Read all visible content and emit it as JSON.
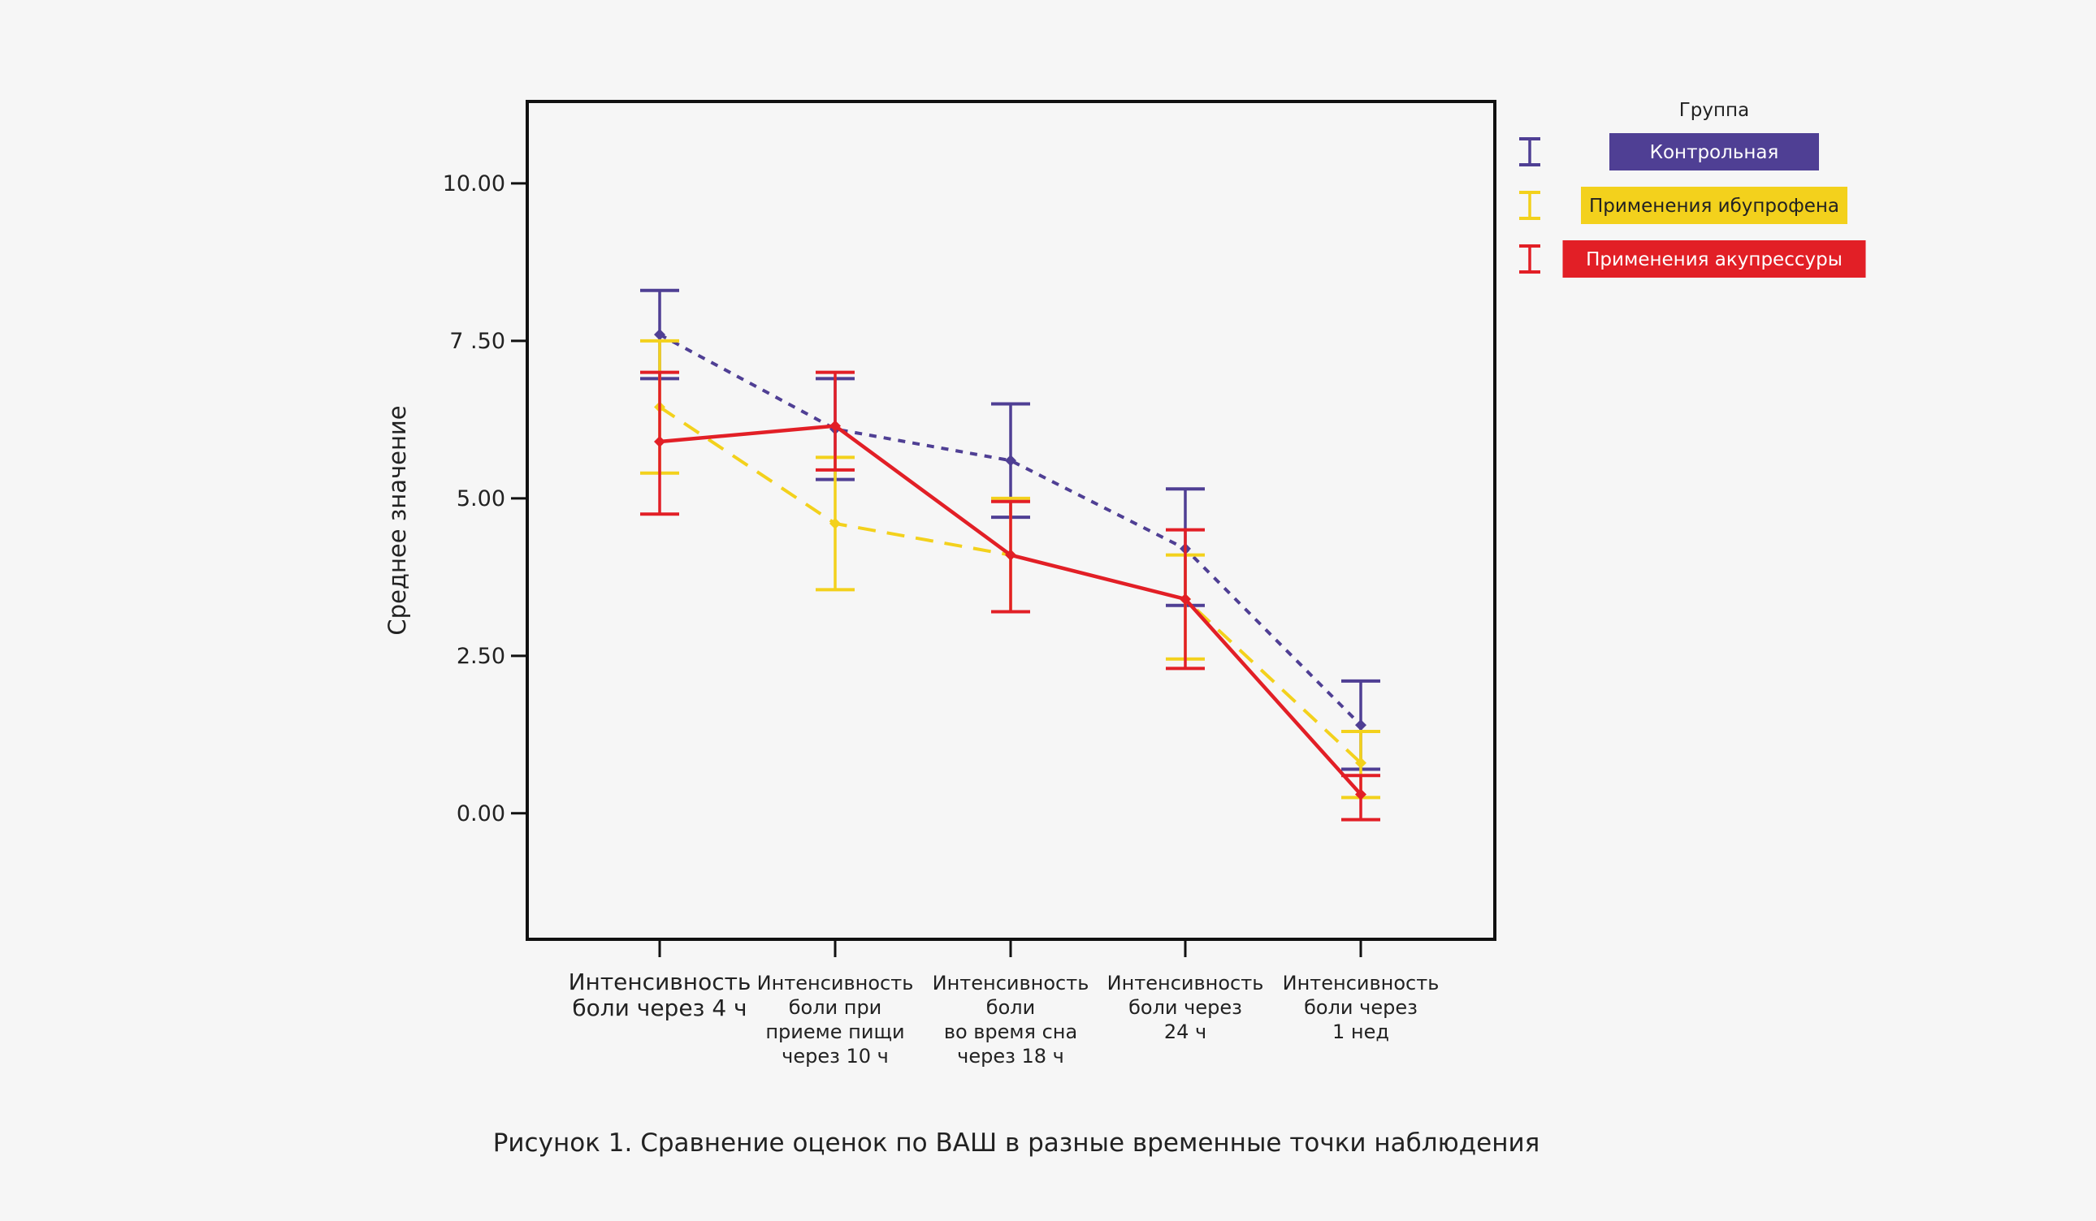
{
  "chart_data": {
    "type": "line",
    "title": "",
    "caption": "Рисунок 1. Сравнение оценок по ВАШ в разные временные точки наблюдения",
    "ylabel": "Среднее значение",
    "xlabel": "",
    "ylim": [
      -2,
      11.3
    ],
    "yticks": [
      {
        "value": 0,
        "label": "0.00"
      },
      {
        "value": 2.5,
        "label": "2.50"
      },
      {
        "value": 5,
        "label": "5.00"
      },
      {
        "value": 7.5,
        "label": "7 .50"
      },
      {
        "value": 10,
        "label": "10.00"
      }
    ],
    "categories": [
      [
        "Интенсивность",
        "боли через 4 ч"
      ],
      [
        "Интенсивность",
        "боли при",
        "приеме пищи",
        "через 10 ч"
      ],
      [
        "Интенсивность",
        "боли",
        "во время сна",
        "через 18 ч"
      ],
      [
        "Интенсивность",
        "боли через",
        "24 ч"
      ],
      [
        "Интенсивность",
        "боли через",
        "1 нед"
      ]
    ],
    "legend": {
      "title": "Группа",
      "position": "right"
    },
    "series": [
      {
        "name": "Контрольная",
        "color": "#4f3f94",
        "label_color": "#ffffff",
        "dash": "dotted",
        "values": [
          7.6,
          6.1,
          5.6,
          4.2,
          1.4
        ],
        "lower": [
          6.9,
          5.3,
          4.7,
          3.3,
          0.7
        ],
        "upper": [
          8.3,
          6.9,
          6.5,
          5.15,
          2.1
        ]
      },
      {
        "name": "Применения ибупрофена",
        "color": "#f3d11c",
        "label_color": "#222222",
        "dash": "dashed",
        "values": [
          6.45,
          4.6,
          4.1,
          3.4,
          0.8
        ],
        "lower": [
          5.4,
          3.55,
          3.2,
          2.45,
          0.25
        ],
        "upper": [
          7.5,
          5.65,
          5.0,
          4.1,
          1.3
        ]
      },
      {
        "name": "Применения акупрессуры",
        "color": "#e21f26",
        "label_color": "#ffffff",
        "dash": "solid",
        "values": [
          5.9,
          6.15,
          4.1,
          3.4,
          0.3
        ],
        "lower": [
          4.75,
          5.45,
          3.2,
          2.3,
          -0.1
        ],
        "upper": [
          7.0,
          7.0,
          4.95,
          4.5,
          0.6
        ]
      }
    ]
  }
}
